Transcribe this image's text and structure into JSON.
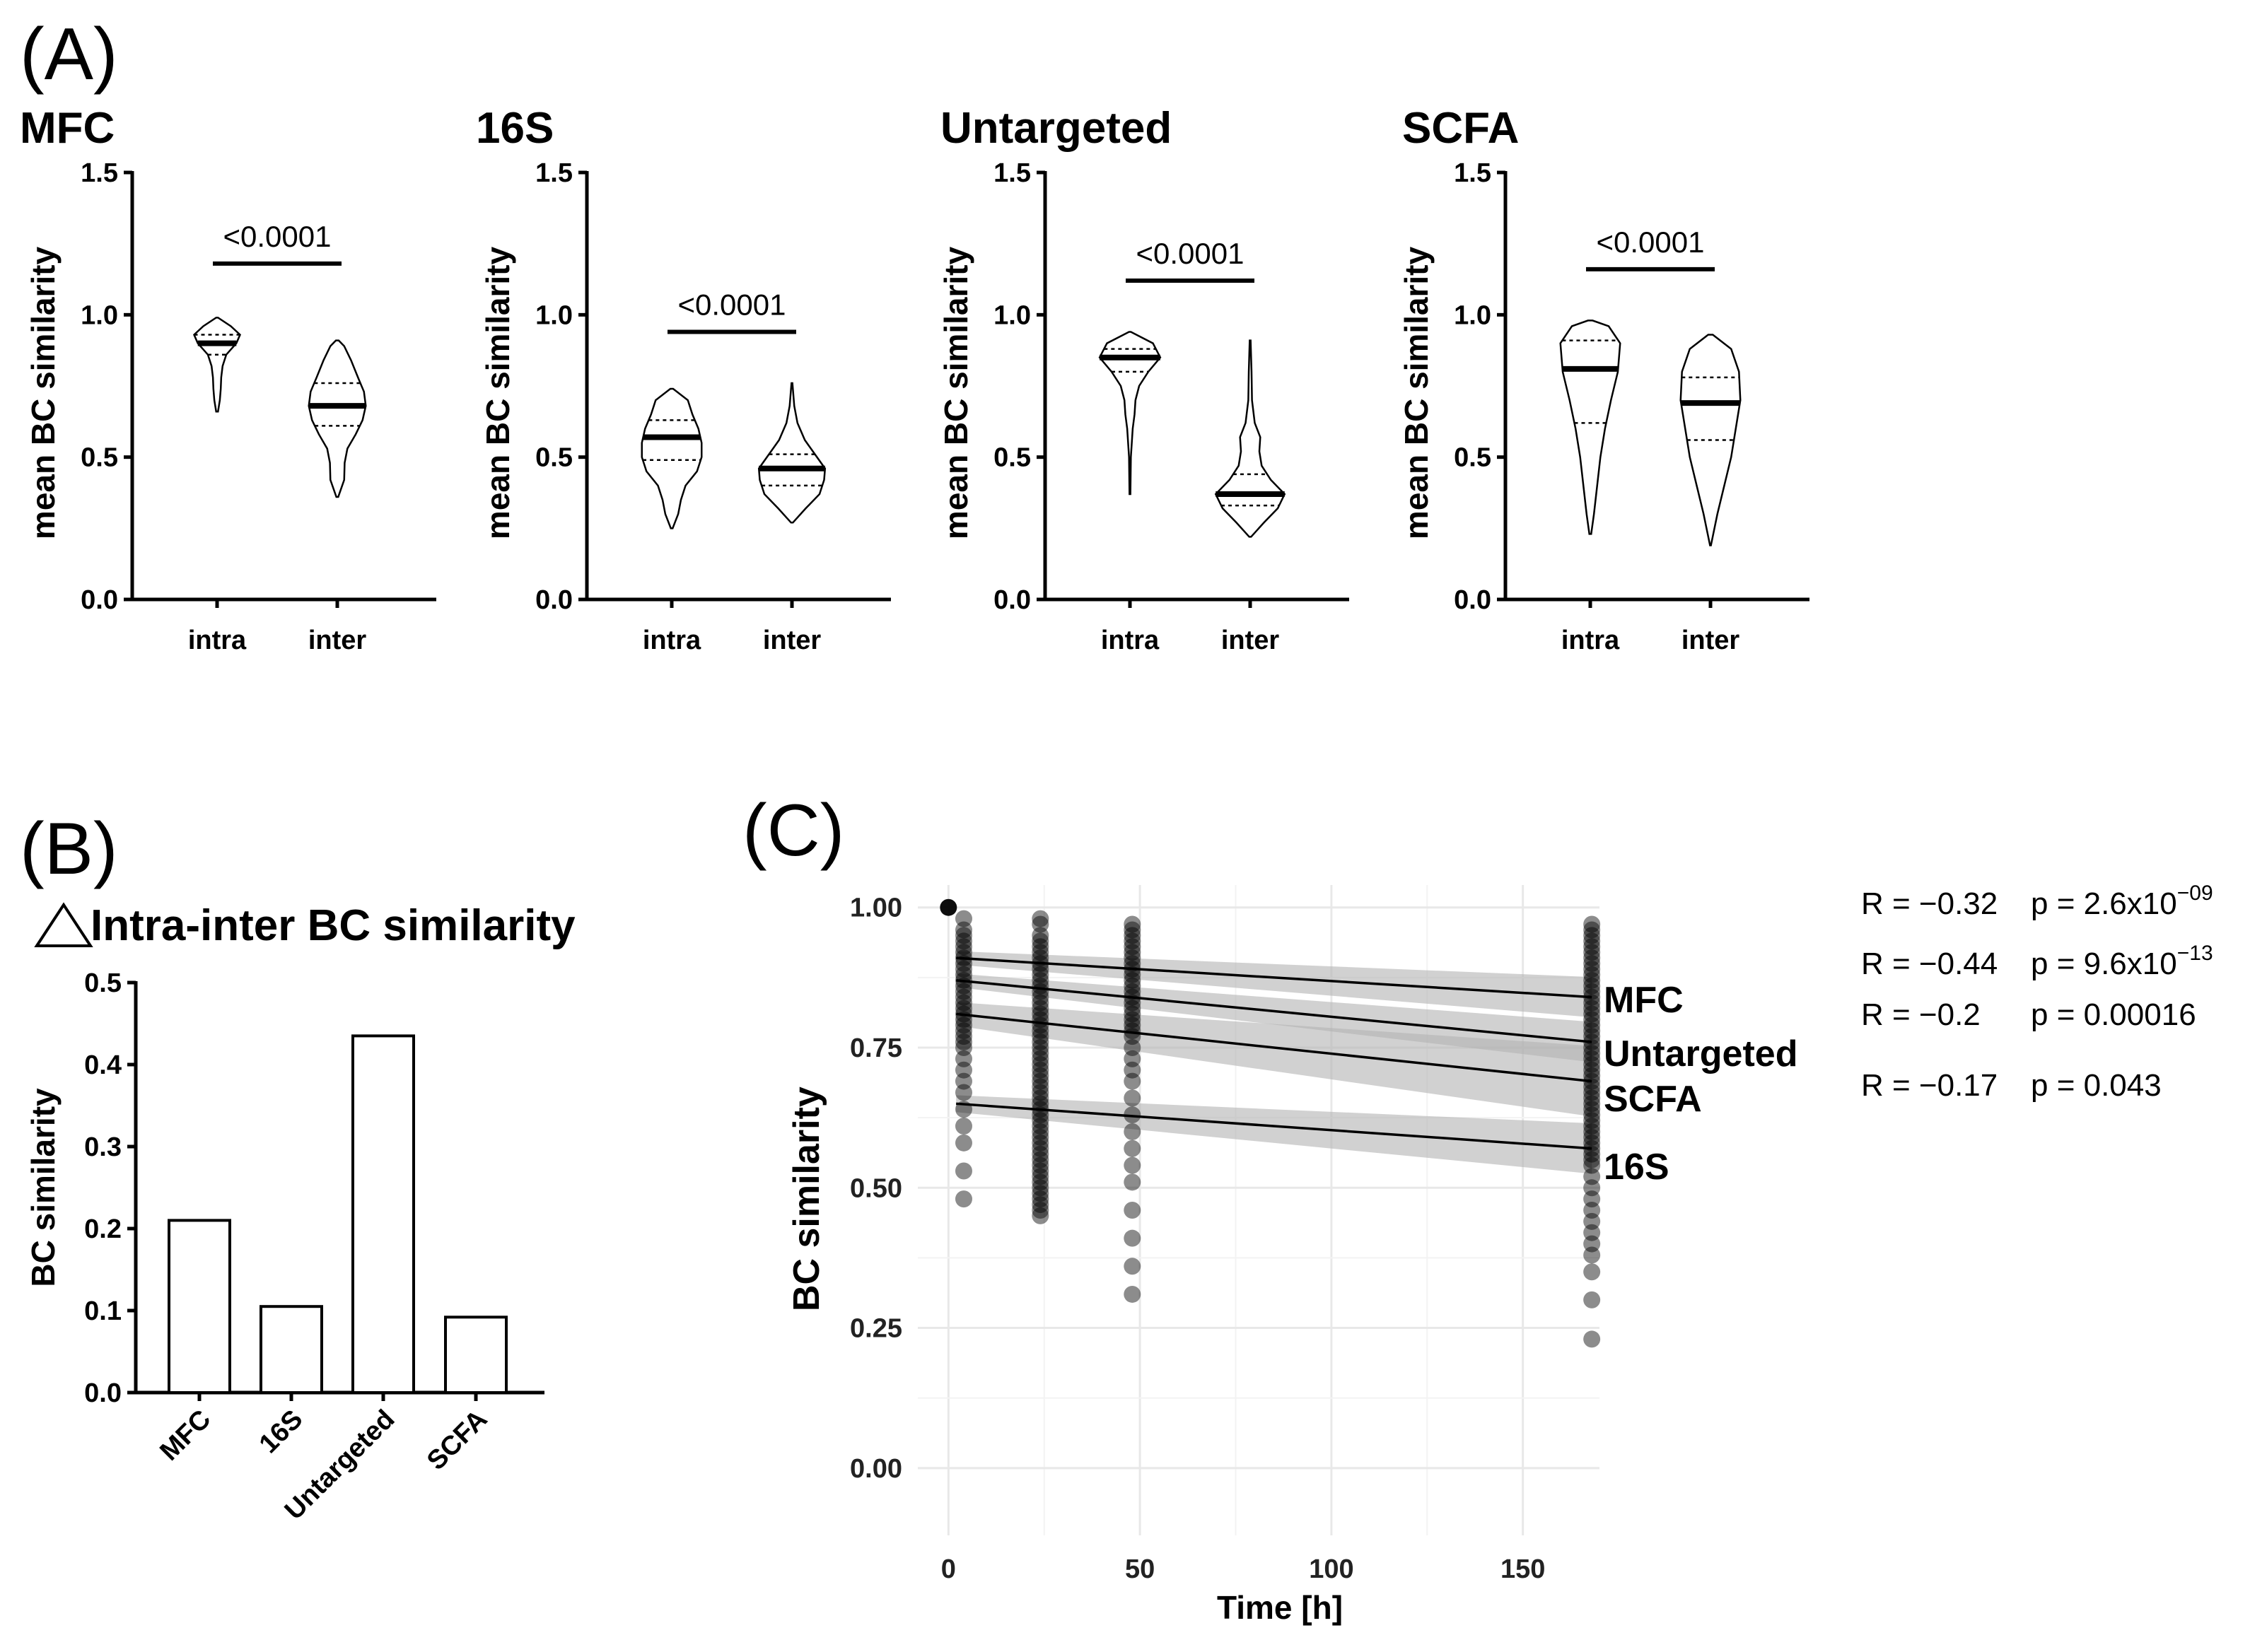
{
  "figure": {
    "panel_A_letter": "(A)",
    "panel_B_letter": "(B)",
    "panel_C_letter": "(C)"
  },
  "chart_data": [
    {
      "type": "violin",
      "title": "MFC",
      "ylabel": "mean BC similarity",
      "ylim": [
        0,
        1.5
      ],
      "yticks": [
        "0.0",
        "0.5",
        "1.0",
        "1.5"
      ],
      "categories": [
        "intra",
        "inter"
      ],
      "groups": [
        {
          "name": "intra",
          "min": 0.66,
          "q1": 0.86,
          "median": 0.9,
          "q3": 0.93,
          "max": 0.99,
          "profile": [
            [
              0.66,
              0.02
            ],
            [
              0.7,
              0.06
            ],
            [
              0.74,
              0.08
            ],
            [
              0.78,
              0.09
            ],
            [
              0.82,
              0.12
            ],
            [
              0.86,
              0.2
            ],
            [
              0.9,
              0.42
            ],
            [
              0.93,
              0.5
            ],
            [
              0.96,
              0.3
            ],
            [
              0.99,
              0.02
            ]
          ]
        },
        {
          "name": "inter",
          "min": 0.36,
          "q1": 0.61,
          "median": 0.68,
          "q3": 0.76,
          "max": 0.91,
          "profile": [
            [
              0.36,
              0.02
            ],
            [
              0.42,
              0.15
            ],
            [
              0.48,
              0.16
            ],
            [
              0.53,
              0.22
            ],
            [
              0.58,
              0.4
            ],
            [
              0.63,
              0.55
            ],
            [
              0.68,
              0.62
            ],
            [
              0.73,
              0.58
            ],
            [
              0.78,
              0.45
            ],
            [
              0.84,
              0.3
            ],
            [
              0.89,
              0.15
            ],
            [
              0.91,
              0.03
            ]
          ]
        }
      ],
      "significance": "<0.0001",
      "sig_y": 1.18
    },
    {
      "type": "violin",
      "title": "16S",
      "ylabel": "mean BC similarity",
      "ylim": [
        0,
        1.5
      ],
      "yticks": [
        "0.0",
        "0.5",
        "1.0",
        "1.5"
      ],
      "categories": [
        "intra",
        "inter"
      ],
      "groups": [
        {
          "name": "intra",
          "min": 0.25,
          "q1": 0.49,
          "median": 0.57,
          "q3": 0.63,
          "max": 0.74,
          "profile": [
            [
              0.25,
              0.02
            ],
            [
              0.3,
              0.14
            ],
            [
              0.35,
              0.2
            ],
            [
              0.4,
              0.3
            ],
            [
              0.45,
              0.55
            ],
            [
              0.5,
              0.65
            ],
            [
              0.55,
              0.65
            ],
            [
              0.6,
              0.58
            ],
            [
              0.65,
              0.45
            ],
            [
              0.7,
              0.35
            ],
            [
              0.74,
              0.03
            ]
          ]
        },
        {
          "name": "inter",
          "min": 0.27,
          "q1": 0.4,
          "median": 0.46,
          "q3": 0.51,
          "max": 0.76,
          "profile": [
            [
              0.27,
              0.02
            ],
            [
              0.32,
              0.3
            ],
            [
              0.37,
              0.6
            ],
            [
              0.42,
              0.7
            ],
            [
              0.46,
              0.72
            ],
            [
              0.51,
              0.5
            ],
            [
              0.56,
              0.28
            ],
            [
              0.62,
              0.12
            ],
            [
              0.68,
              0.05
            ],
            [
              0.76,
              0.01
            ]
          ]
        }
      ],
      "significance": "<0.0001",
      "sig_y": 0.94
    },
    {
      "type": "violin",
      "title": "Untargeted",
      "ylabel": "mean BC similarity",
      "ylim": [
        0,
        1.5
      ],
      "yticks": [
        "0.0",
        "0.5",
        "1.0",
        "1.5"
      ],
      "categories": [
        "intra",
        "inter"
      ],
      "groups": [
        {
          "name": "intra",
          "min": 0.37,
          "q1": 0.8,
          "median": 0.85,
          "q3": 0.88,
          "max": 0.94,
          "profile": [
            [
              0.37,
              0.01
            ],
            [
              0.5,
              0.02
            ],
            [
              0.6,
              0.06
            ],
            [
              0.65,
              0.1
            ],
            [
              0.7,
              0.12
            ],
            [
              0.75,
              0.2
            ],
            [
              0.8,
              0.4
            ],
            [
              0.85,
              0.66
            ],
            [
              0.9,
              0.5
            ],
            [
              0.94,
              0.02
            ]
          ]
        },
        {
          "name": "inter",
          "min": 0.22,
          "q1": 0.33,
          "median": 0.37,
          "q3": 0.44,
          "max": 0.91,
          "profile": [
            [
              0.22,
              0.02
            ],
            [
              0.27,
              0.3
            ],
            [
              0.32,
              0.6
            ],
            [
              0.37,
              0.75
            ],
            [
              0.42,
              0.45
            ],
            [
              0.47,
              0.25
            ],
            [
              0.52,
              0.2
            ],
            [
              0.57,
              0.22
            ],
            [
              0.62,
              0.1
            ],
            [
              0.7,
              0.04
            ],
            [
              0.8,
              0.03
            ],
            [
              0.91,
              0.01
            ]
          ]
        }
      ],
      "significance": "<0.0001",
      "sig_y": 1.12
    },
    {
      "type": "violin",
      "title": "SCFA",
      "ylabel": "mean BC similarity",
      "ylim": [
        0,
        1.5
      ],
      "yticks": [
        "0.0",
        "0.5",
        "1.0",
        "1.5"
      ],
      "categories": [
        "intra",
        "inter"
      ],
      "groups": [
        {
          "name": "intra",
          "min": 0.23,
          "q1": 0.62,
          "median": 0.81,
          "q3": 0.91,
          "max": 0.98,
          "profile": [
            [
              0.23,
              0.02
            ],
            [
              0.3,
              0.08
            ],
            [
              0.4,
              0.15
            ],
            [
              0.5,
              0.22
            ],
            [
              0.6,
              0.32
            ],
            [
              0.7,
              0.45
            ],
            [
              0.8,
              0.6
            ],
            [
              0.9,
              0.65
            ],
            [
              0.96,
              0.4
            ],
            [
              0.98,
              0.05
            ]
          ]
        },
        {
          "name": "inter",
          "min": 0.19,
          "q1": 0.56,
          "median": 0.69,
          "q3": 0.78,
          "max": 0.93,
          "profile": [
            [
              0.19,
              0.01
            ],
            [
              0.3,
              0.15
            ],
            [
              0.4,
              0.3
            ],
            [
              0.5,
              0.45
            ],
            [
              0.6,
              0.55
            ],
            [
              0.7,
              0.65
            ],
            [
              0.8,
              0.62
            ],
            [
              0.88,
              0.45
            ],
            [
              0.93,
              0.05
            ]
          ]
        }
      ],
      "significance": "<0.0001",
      "sig_y": 1.16
    },
    {
      "type": "bar",
      "title": "Intra-inter BC similarity",
      "title_symbol": "△",
      "ylabel": "BC similarity",
      "ylim": [
        0,
        0.5
      ],
      "yticks": [
        "0.0",
        "0.1",
        "0.2",
        "0.3",
        "0.4",
        "0.5"
      ],
      "categories": [
        "MFC",
        "16S",
        "Untargeted",
        "SCFA"
      ],
      "values": [
        0.21,
        0.105,
        0.435,
        0.092
      ]
    },
    {
      "type": "scatter",
      "title": "",
      "xlabel": "Time [h]",
      "ylabel": "BC similarity",
      "xlim": [
        -8,
        170
      ],
      "ylim": [
        -0.12,
        1.04
      ],
      "xticks": [
        0,
        50,
        100,
        150
      ],
      "xtick_labels": [
        "0",
        "50",
        "100",
        "150"
      ],
      "yticks": [
        0.0,
        0.25,
        0.5,
        0.75,
        1.0
      ],
      "ytick_labels": [
        "0.00",
        "0.25",
        "0.50",
        "0.75",
        "1.00"
      ],
      "time_points": [
        0,
        4,
        24,
        48,
        168
      ],
      "lines": [
        {
          "name": "MFC",
          "start": [
            2,
            0.91
          ],
          "end": [
            168,
            0.84
          ],
          "band": 0.02
        },
        {
          "name": "Untargeted",
          "start": [
            2,
            0.87
          ],
          "end": [
            168,
            0.76
          ],
          "band": 0.02
        },
        {
          "name": "SCFA",
          "start": [
            2,
            0.81
          ],
          "end": [
            168,
            0.69
          ],
          "band": 0.035
        },
        {
          "name": "16S",
          "start": [
            2,
            0.65
          ],
          "end": [
            168,
            0.57
          ],
          "band": 0.025
        }
      ],
      "series_labels": [
        "MFC",
        "Untargeted",
        "SCFA",
        "16S"
      ],
      "stats": [
        {
          "R": "R = −0.32",
          "p_prefix": "p = 2.6x10",
          "p_exp": "−09"
        },
        {
          "R": "R = −0.44",
          "p_prefix": "p = 9.6x10",
          "p_exp": "−13"
        },
        {
          "R": "R = −0.2",
          "p_prefix": "p = 0.00016",
          "p_exp": ""
        },
        {
          "R": "R = −0.17",
          "p_prefix": "p = 0.043",
          "p_exp": ""
        }
      ],
      "points": [
        {
          "t": 0,
          "y": [
            1.0
          ]
        },
        {
          "t": 4,
          "y": [
            0.98,
            0.96,
            0.95,
            0.94,
            0.93,
            0.92,
            0.91,
            0.9,
            0.89,
            0.88,
            0.87,
            0.86,
            0.85,
            0.84,
            0.83,
            0.82,
            0.81,
            0.8,
            0.79,
            0.78,
            0.77,
            0.76,
            0.75,
            0.73,
            0.71,
            0.69,
            0.67,
            0.64,
            0.61,
            0.58,
            0.53,
            0.48
          ]
        },
        {
          "t": 24,
          "y": [
            0.98,
            0.97,
            0.95,
            0.94,
            0.93,
            0.92,
            0.91,
            0.9,
            0.89,
            0.88,
            0.87,
            0.86,
            0.85,
            0.84,
            0.83,
            0.82,
            0.81,
            0.8,
            0.79,
            0.78,
            0.77,
            0.76,
            0.75,
            0.74,
            0.73,
            0.72,
            0.71,
            0.7,
            0.69,
            0.68,
            0.67,
            0.66,
            0.65,
            0.64,
            0.63,
            0.62,
            0.61,
            0.6,
            0.59,
            0.58,
            0.57,
            0.56,
            0.55,
            0.54,
            0.53,
            0.52,
            0.51,
            0.5,
            0.49,
            0.48,
            0.47,
            0.46,
            0.45
          ]
        },
        {
          "t": 48,
          "y": [
            0.97,
            0.96,
            0.95,
            0.94,
            0.93,
            0.92,
            0.91,
            0.9,
            0.89,
            0.88,
            0.87,
            0.86,
            0.85,
            0.84,
            0.83,
            0.82,
            0.81,
            0.8,
            0.79,
            0.78,
            0.77,
            0.75,
            0.73,
            0.71,
            0.69,
            0.66,
            0.63,
            0.6,
            0.57,
            0.54,
            0.51,
            0.46,
            0.41,
            0.36,
            0.31
          ]
        },
        {
          "t": 168,
          "y": [
            0.97,
            0.96,
            0.95,
            0.94,
            0.93,
            0.92,
            0.91,
            0.9,
            0.89,
            0.88,
            0.87,
            0.86,
            0.85,
            0.84,
            0.83,
            0.82,
            0.81,
            0.8,
            0.79,
            0.78,
            0.77,
            0.76,
            0.75,
            0.74,
            0.73,
            0.72,
            0.71,
            0.7,
            0.69,
            0.68,
            0.67,
            0.66,
            0.65,
            0.64,
            0.63,
            0.62,
            0.61,
            0.6,
            0.59,
            0.58,
            0.57,
            0.56,
            0.55,
            0.54,
            0.52,
            0.5,
            0.48,
            0.46,
            0.44,
            0.42,
            0.4,
            0.38,
            0.35,
            0.3,
            0.23
          ]
        }
      ]
    }
  ]
}
